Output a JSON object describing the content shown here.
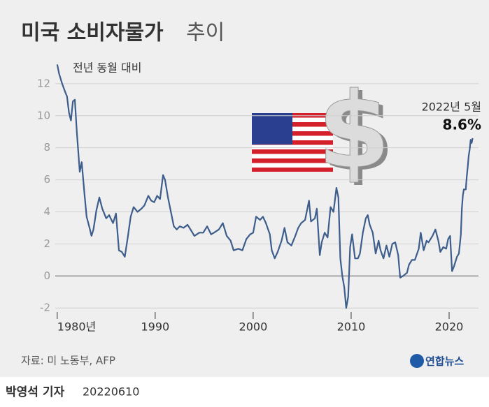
{
  "chart_data": {
    "type": "line",
    "title": "미국 소비자물가",
    "title_suffix": "추이",
    "y_label": "전년 동월 대비",
    "annotation": {
      "date": "2022년 5월",
      "value": "8.6%"
    },
    "source": "자료: 미 노동부, AFP",
    "logo": "연합뉴스",
    "byline": "박영석 기자",
    "date": "20220610",
    "xlim": [
      1979.8,
      2023
    ],
    "ylim": [
      -2.6,
      13.3
    ],
    "xticks": [
      {
        "value": 1980,
        "label": "1980년"
      },
      1990,
      2000,
      2010,
      2020
    ],
    "yticks": [
      -2,
      0,
      2,
      4,
      6,
      8,
      10,
      12
    ],
    "grid": true,
    "x": [
      1980.0,
      1980.2,
      1980.5,
      1980.8,
      1981.0,
      1981.2,
      1981.4,
      1981.6,
      1981.8,
      1982.0,
      1982.3,
      1982.5,
      1982.8,
      1983.0,
      1983.3,
      1983.5,
      1983.7,
      1984.0,
      1984.3,
      1984.6,
      1985.0,
      1985.3,
      1985.7,
      1986.0,
      1986.3,
      1986.6,
      1986.9,
      1987.2,
      1987.5,
      1987.8,
      1988.2,
      1988.6,
      1988.9,
      1989.3,
      1989.6,
      1989.9,
      1990.2,
      1990.5,
      1990.8,
      1991.0,
      1991.3,
      1991.6,
      1991.9,
      1992.2,
      1992.5,
      1992.9,
      1993.3,
      1993.7,
      1994.0,
      1994.5,
      1994.9,
      1995.3,
      1995.7,
      1996.0,
      1996.5,
      1996.9,
      1997.3,
      1997.7,
      1998.0,
      1998.5,
      1998.9,
      1999.3,
      1999.7,
      2000.0,
      2000.3,
      2000.7,
      2001.0,
      2001.3,
      2001.7,
      2001.9,
      2002.2,
      2002.5,
      2002.9,
      2003.2,
      2003.5,
      2003.9,
      2004.3,
      2004.6,
      2004.9,
      2005.3,
      2005.7,
      2005.9,
      2006.3,
      2006.5,
      2006.8,
      2007.0,
      2007.3,
      2007.6,
      2007.9,
      2008.2,
      2008.5,
      2008.7,
      2008.9,
      2009.1,
      2009.3,
      2009.5,
      2009.7,
      2009.9,
      2010.1,
      2010.4,
      2010.7,
      2010.9,
      2011.2,
      2011.5,
      2011.7,
      2011.9,
      2012.2,
      2012.5,
      2012.8,
      2013.0,
      2013.3,
      2013.6,
      2013.9,
      2014.2,
      2014.5,
      2014.8,
      2015.0,
      2015.3,
      2015.7,
      2015.9,
      2016.2,
      2016.5,
      2016.9,
      2017.1,
      2017.4,
      2017.7,
      2017.9,
      2018.3,
      2018.6,
      2018.9,
      2019.1,
      2019.4,
      2019.7,
      2019.9,
      2020.1,
      2020.3,
      2020.5,
      2020.8,
      2021.0,
      2021.2,
      2021.3,
      2021.4,
      2021.5,
      2021.7,
      2021.8,
      2021.9,
      2022.0,
      2022.1,
      2022.2,
      2022.3,
      2022.4
    ],
    "series": [
      {
        "color": "#3d5e8c",
        "values": [
          13.2,
          12.6,
          12.0,
          11.5,
          11.2,
          10.2,
          9.7,
          10.9,
          11.0,
          9.0,
          6.5,
          7.1,
          5.0,
          3.7,
          3.0,
          2.5,
          2.9,
          4.1,
          4.9,
          4.2,
          3.6,
          3.8,
          3.3,
          3.9,
          1.6,
          1.5,
          1.2,
          2.4,
          3.7,
          4.3,
          4.0,
          4.2,
          4.4,
          5.0,
          4.7,
          4.6,
          5.0,
          4.8,
          6.3,
          6.0,
          4.9,
          4.0,
          3.1,
          2.9,
          3.1,
          3.0,
          3.2,
          2.8,
          2.5,
          2.7,
          2.7,
          3.1,
          2.6,
          2.7,
          2.9,
          3.3,
          2.5,
          2.2,
          1.6,
          1.7,
          1.6,
          2.3,
          2.6,
          2.7,
          3.7,
          3.5,
          3.7,
          3.3,
          2.6,
          1.6,
          1.1,
          1.5,
          2.2,
          3.0,
          2.1,
          1.9,
          2.5,
          3.0,
          3.3,
          3.5,
          4.7,
          3.4,
          3.6,
          4.2,
          1.3,
          2.1,
          2.7,
          2.4,
          4.3,
          4.0,
          5.5,
          4.9,
          1.1,
          0.0,
          -0.7,
          -2.0,
          -1.3,
          1.8,
          2.6,
          1.1,
          1.1,
          1.4,
          2.7,
          3.6,
          3.8,
          3.2,
          2.7,
          1.4,
          2.2,
          1.6,
          1.1,
          1.9,
          1.2,
          2.0,
          2.1,
          1.3,
          -0.1,
          0.0,
          0.2,
          0.7,
          1.0,
          1.0,
          1.7,
          2.7,
          1.6,
          2.2,
          2.1,
          2.5,
          2.9,
          2.2,
          1.5,
          1.8,
          1.7,
          2.3,
          2.5,
          0.3,
          0.6,
          1.2,
          1.4,
          2.6,
          4.2,
          5.0,
          5.4,
          5.4,
          6.2,
          6.8,
          7.5,
          7.9,
          8.5,
          8.3,
          8.6
        ]
      }
    ]
  }
}
